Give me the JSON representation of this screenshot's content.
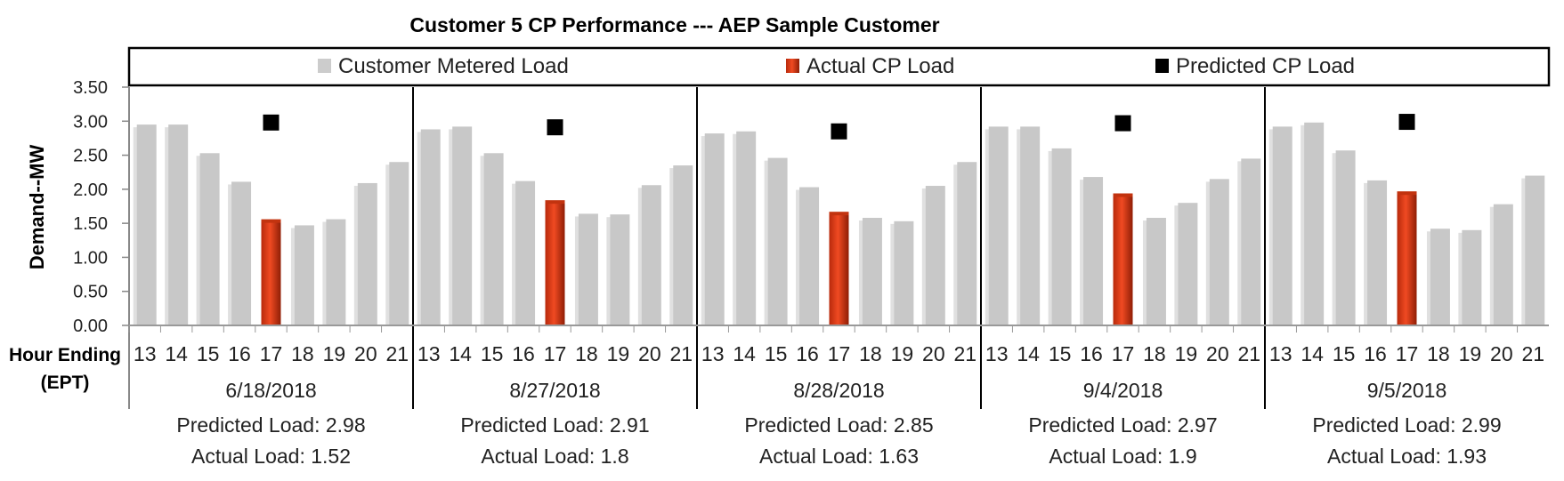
{
  "chart_data": {
    "type": "bar",
    "title": "Customer 5 CP Performance --- AEP Sample Customer",
    "ylabel": "Demand--MW",
    "xlabel_line1": "Hour Ending",
    "xlabel_line2": "(EPT)",
    "ylim": [
      0,
      3.5
    ],
    "yticks": [
      "0.00",
      "0.50",
      "1.00",
      "1.50",
      "2.00",
      "2.50",
      "3.00",
      "3.50"
    ],
    "legend": {
      "placement": "top",
      "items": [
        {
          "label": "Customer Metered Load",
          "color": "#cccccc"
        },
        {
          "label": "Actual CP Load",
          "color": "#e5401c"
        },
        {
          "label": "Predicted CP Load",
          "color": "#000000"
        }
      ]
    },
    "hours": [
      "13",
      "14",
      "15",
      "16",
      "17",
      "18",
      "19",
      "20",
      "21"
    ],
    "cp_hour": "17",
    "days": [
      {
        "date": "6/18/2018",
        "metered": [
          2.95,
          2.95,
          2.53,
          2.11,
          1.52,
          1.47,
          1.56,
          2.09,
          2.4
        ],
        "predicted": 2.98,
        "actual": 1.52,
        "predicted_text": "Predicted Load: 2.98",
        "actual_text": "Actual Load: 1.52"
      },
      {
        "date": "8/27/2018",
        "metered": [
          2.88,
          2.92,
          2.53,
          2.12,
          1.8,
          1.64,
          1.63,
          2.06,
          2.35
        ],
        "predicted": 2.91,
        "actual": 1.8,
        "predicted_text": "Predicted Load: 2.91",
        "actual_text": "Actual Load: 1.8"
      },
      {
        "date": "8/28/2018",
        "metered": [
          2.82,
          2.85,
          2.46,
          2.03,
          1.63,
          1.58,
          1.53,
          2.05,
          2.4
        ],
        "predicted": 2.85,
        "actual": 1.63,
        "predicted_text": "Predicted Load: 2.85",
        "actual_text": "Actual Load: 1.63"
      },
      {
        "date": "9/4/2018",
        "metered": [
          2.92,
          2.92,
          2.6,
          2.18,
          1.9,
          1.58,
          1.8,
          2.15,
          2.45
        ],
        "predicted": 2.97,
        "actual": 1.9,
        "predicted_text": "Predicted Load: 2.97",
        "actual_text": "Actual Load: 1.9"
      },
      {
        "date": "9/5/2018",
        "metered": [
          2.92,
          2.98,
          2.57,
          2.13,
          1.93,
          1.42,
          1.4,
          1.78,
          2.2
        ],
        "predicted": 2.99,
        "actual": 1.93,
        "predicted_text": "Predicted Load: 2.99",
        "actual_text": "Actual Load: 1.93"
      }
    ]
  }
}
